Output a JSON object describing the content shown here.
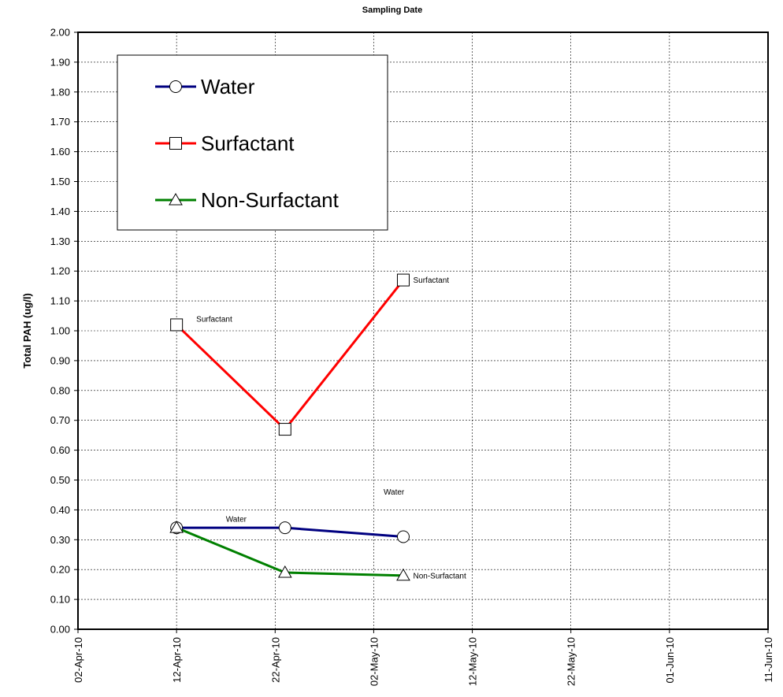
{
  "chart_data": {
    "type": "line",
    "title": "Sampling Date",
    "xlabel": "",
    "ylabel": "Total PAH (ug/l)",
    "x_tick_labels": [
      "02-Apr-10",
      "12-Apr-10",
      "22-Apr-10",
      "02-May-10",
      "12-May-10",
      "22-May-10",
      "01-Jun-10",
      "11-Jun-10"
    ],
    "xlim": [
      "2010-04-02",
      "2010-06-11"
    ],
    "ylim": [
      0,
      2
    ],
    "y_tick_step": 0.1,
    "y_tick_decimals": 2,
    "grid": true,
    "legend_position": "top-left",
    "series": [
      {
        "name": "Water",
        "color": "#000080",
        "marker": "circle",
        "x": [
          "2010-04-12",
          "2010-04-23",
          "2010-05-05"
        ],
        "values": [
          0.34,
          0.34,
          0.31
        ]
      },
      {
        "name": "Surfactant",
        "color": "#ff0000",
        "marker": "square",
        "x": [
          "2010-04-12",
          "2010-04-23",
          "2010-05-05"
        ],
        "values": [
          1.02,
          0.67,
          1.17
        ]
      },
      {
        "name": "Non-Surfactant",
        "color": "#008000",
        "marker": "triangle",
        "x": [
          "2010-04-12",
          "2010-04-23",
          "2010-05-05"
        ],
        "values": [
          0.34,
          0.19,
          0.18
        ]
      }
    ],
    "annotations": [
      {
        "text": "Surfactant",
        "x": "2010-04-14",
        "y": 1.04
      },
      {
        "text": "Surfactant",
        "x": "2010-05-06",
        "y": 1.17
      },
      {
        "text": "Water",
        "x": "2010-04-17",
        "y": 0.37
      },
      {
        "text": "Water",
        "x": "2010-05-03",
        "y": 0.46
      },
      {
        "text": "Non-Surfactant",
        "x": "2010-05-06",
        "y": 0.18
      }
    ]
  }
}
